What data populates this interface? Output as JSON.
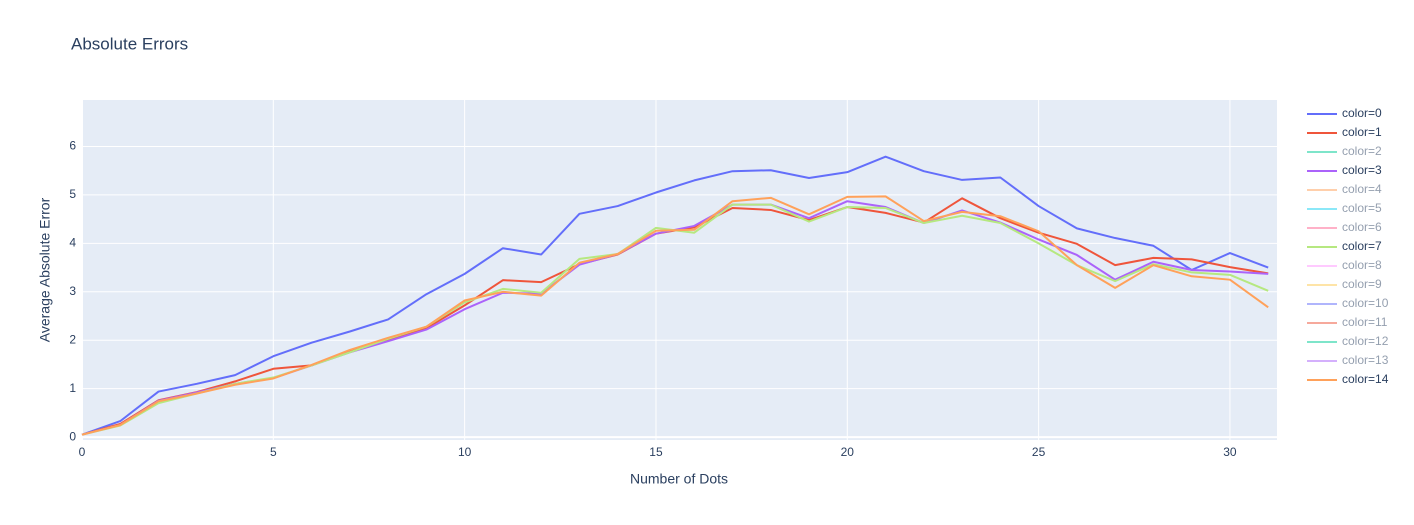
{
  "chart_data": {
    "type": "line",
    "title": "Absolute Errors",
    "xlabel": "Number of Dots",
    "ylabel": "Average Absolute Error",
    "x": [
      0,
      1,
      2,
      3,
      4,
      5,
      6,
      7,
      8,
      9,
      10,
      11,
      12,
      13,
      14,
      15,
      16,
      17,
      18,
      19,
      20,
      21,
      22,
      23,
      24,
      25,
      26,
      27,
      28,
      29,
      30,
      31
    ],
    "xlim": [
      0,
      31.23
    ],
    "xticks": [
      0,
      5,
      10,
      15,
      20,
      25,
      30
    ],
    "ylim": [
      -0.06,
      6.96
    ],
    "yticks": [
      0,
      1,
      2,
      3,
      4,
      5,
      6
    ],
    "grid": true,
    "legend": "right",
    "series": [
      {
        "name": "color=0",
        "color": "#636efa",
        "values": [
          0.05,
          0.33,
          0.94,
          1.1,
          1.28,
          1.67,
          1.95,
          2.18,
          2.43,
          2.95,
          3.37,
          3.9,
          3.77,
          4.61,
          4.77,
          5.05,
          5.3,
          5.49,
          5.51,
          5.35,
          5.47,
          5.79,
          5.49,
          5.31,
          5.36,
          4.77,
          4.31,
          4.11,
          3.95,
          3.45,
          3.8,
          3.5
        ]
      },
      {
        "name": "color=1",
        "color": "#EF553B",
        "values": [
          0.05,
          0.27,
          0.76,
          0.93,
          1.15,
          1.41,
          1.48,
          1.78,
          2.0,
          2.25,
          2.72,
          3.24,
          3.2,
          3.57,
          3.77,
          4.2,
          4.33,
          4.73,
          4.69,
          4.48,
          4.75,
          4.63,
          4.43,
          4.93,
          4.52,
          4.22,
          3.99,
          3.55,
          3.7,
          3.67,
          3.51,
          3.38
        ]
      },
      {
        "name": "color=2",
        "color": "#00cc96",
        "visible": "legendonly"
      },
      {
        "name": "color=3",
        "color": "#ab63fa",
        "values": [
          0.05,
          0.25,
          0.75,
          0.92,
          1.1,
          1.22,
          1.48,
          1.75,
          1.98,
          2.22,
          2.64,
          2.98,
          2.96,
          3.56,
          3.78,
          4.2,
          4.36,
          4.8,
          4.8,
          4.52,
          4.87,
          4.75,
          4.42,
          4.68,
          4.43,
          4.08,
          3.76,
          3.25,
          3.62,
          3.45,
          3.42,
          3.37
        ]
      },
      {
        "name": "color=4",
        "color": "#FFA15A",
        "visible": "legendonly"
      },
      {
        "name": "color=5",
        "color": "#19d3f3",
        "visible": "legendonly"
      },
      {
        "name": "color=6",
        "color": "#FF6692",
        "visible": "legendonly"
      },
      {
        "name": "color=7",
        "color": "#B6E880",
        "values": [
          0.05,
          0.24,
          0.7,
          0.9,
          1.1,
          1.23,
          1.48,
          1.75,
          2.03,
          2.28,
          2.78,
          3.06,
          2.98,
          3.68,
          3.78,
          4.32,
          4.22,
          4.8,
          4.8,
          4.45,
          4.75,
          4.73,
          4.42,
          4.57,
          4.42,
          4.0,
          3.55,
          3.22,
          3.57,
          3.4,
          3.35,
          3.02
        ]
      },
      {
        "name": "color=8",
        "color": "#FF97FF",
        "visible": "legendonly"
      },
      {
        "name": "color=9",
        "color": "#FECB52",
        "visible": "legendonly"
      },
      {
        "name": "color=10",
        "color": "#636efa",
        "visible": "legendonly"
      },
      {
        "name": "color=11",
        "color": "#EF553B",
        "visible": "legendonly"
      },
      {
        "name": "color=12",
        "color": "#00cc96",
        "visible": "legendonly"
      },
      {
        "name": "color=13",
        "color": "#ab63fa",
        "visible": "legendonly"
      },
      {
        "name": "color=14",
        "color": "#FFA15A",
        "values": [
          0.05,
          0.25,
          0.74,
          0.9,
          1.08,
          1.21,
          1.49,
          1.8,
          2.05,
          2.28,
          2.82,
          3.0,
          2.92,
          3.6,
          3.78,
          4.26,
          4.28,
          4.87,
          4.94,
          4.6,
          4.96,
          4.97,
          4.46,
          4.65,
          4.56,
          4.25,
          3.55,
          3.08,
          3.55,
          3.32,
          3.25,
          2.68
        ]
      }
    ]
  }
}
